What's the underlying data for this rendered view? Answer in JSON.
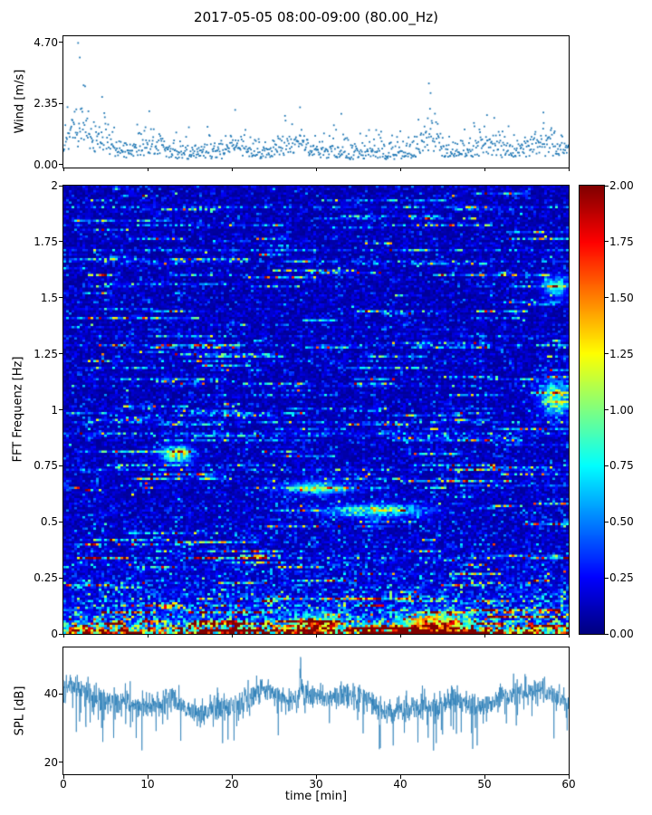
{
  "figure": {
    "title": "2017-05-05 08:00-09:00 (80.00_Hz)",
    "xlabel": "time [min]",
    "xlim": [
      0,
      60
    ],
    "xticks": {
      "values": [
        0,
        10,
        20,
        30,
        40,
        50,
        60
      ],
      "labels": [
        "0",
        "10",
        "20",
        "30",
        "40",
        "50",
        "60"
      ]
    },
    "background": "#ffffff",
    "accent_color": "#1f77b4"
  },
  "chart_data": [
    {
      "id": "wind",
      "type": "scatter",
      "ylabel": "Wind [m/s]",
      "xlim": [
        0,
        60
      ],
      "ylim": [
        -0.12,
        4.94
      ],
      "yticks": {
        "values": [
          0.0,
          2.35,
          4.7
        ],
        "labels": [
          "0.00",
          "2.35",
          "4.70"
        ]
      },
      "marker_color": "#1f77b4",
      "typical_band": [
        0.2,
        1.5
      ],
      "notable_points": [
        [
          1.75,
          4.68
        ],
        [
          1.95,
          4.12
        ],
        [
          2.4,
          3.05
        ],
        [
          4.6,
          2.6
        ],
        [
          10.2,
          2.05
        ],
        [
          20.4,
          2.1
        ],
        [
          28.1,
          2.2
        ],
        [
          33.0,
          1.95
        ],
        [
          43.4,
          3.12
        ],
        [
          43.6,
          2.75
        ],
        [
          50.3,
          1.9
        ],
        [
          57.0,
          2.0
        ]
      ],
      "burst_envelope": [
        {
          "t": 1.9,
          "amp": 1.25,
          "w": 1.1
        },
        {
          "t": 4.5,
          "amp": 0.5,
          "w": 1.0
        },
        {
          "t": 10.0,
          "amp": 0.42,
          "w": 1.3
        },
        {
          "t": 20.5,
          "amp": 0.3,
          "w": 1.0
        },
        {
          "t": 27.5,
          "amp": 0.45,
          "w": 1.6
        },
        {
          "t": 43.5,
          "amp": 0.95,
          "w": 0.8
        },
        {
          "t": 50.5,
          "amp": 0.3,
          "w": 1.2
        },
        {
          "t": 56.5,
          "amp": 0.35,
          "w": 1.5
        }
      ]
    },
    {
      "id": "spectrogram",
      "type": "heatmap",
      "ylabel": "FFT Frequenz [Hz]",
      "xlim": [
        0,
        60
      ],
      "ylim": [
        0,
        2
      ],
      "yticks": {
        "values": [
          0,
          0.25,
          0.5,
          0.75,
          1,
          1.25,
          1.5,
          1.75,
          2
        ],
        "labels": [
          "0",
          "0.25",
          "0.5",
          "0.75",
          "1",
          "1.25",
          "1.5",
          "1.75",
          "2"
        ]
      },
      "colormap": "jet",
      "clim": [
        0,
        2
      ],
      "colorbar_ticks": {
        "values": [
          0,
          0.25,
          0.5,
          0.75,
          1,
          1.25,
          1.5,
          1.75,
          2
        ],
        "labels": [
          "0.00",
          "0.25",
          "0.50",
          "0.75",
          "1.00",
          "1.25",
          "1.50",
          "1.75",
          "2.00"
        ]
      },
      "background_level": 0.17,
      "low_freq_band": {
        "below_hz": 0.02,
        "level": 2.0
      },
      "bright_patches": [
        {
          "t": 13.5,
          "f": 0.8,
          "amp": 1.5,
          "tw": 1.2,
          "fw": 0.025
        },
        {
          "t": 30.0,
          "f": 0.65,
          "amp": 1.0,
          "tw": 2.5,
          "fw": 0.02
        },
        {
          "t": 37.0,
          "f": 0.55,
          "amp": 1.2,
          "tw": 4.0,
          "fw": 0.018
        },
        {
          "t": 44.0,
          "f": 0.04,
          "amp": 1.6,
          "tw": 2.5,
          "fw": 0.035
        },
        {
          "t": 30.0,
          "f": 0.04,
          "amp": 1.2,
          "tw": 2.0,
          "fw": 0.03
        },
        {
          "t": 58.5,
          "f": 1.05,
          "amp": 1.3,
          "tw": 1.2,
          "fw": 0.05
        },
        {
          "t": 58.5,
          "f": 1.55,
          "amp": 1.1,
          "tw": 1.0,
          "fw": 0.03
        }
      ]
    },
    {
      "id": "spl",
      "type": "line",
      "ylabel": "SPL [dB]",
      "xlim": [
        0,
        60
      ],
      "ylim": [
        16.5,
        53.5
      ],
      "yticks": {
        "values": [
          20,
          40
        ],
        "labels": [
          "20",
          "40"
        ]
      },
      "line_color": "#1f77b4",
      "mean_level": 38,
      "range": [
        20,
        52
      ],
      "peak": {
        "t": 28.2,
        "v": 51
      }
    }
  ]
}
